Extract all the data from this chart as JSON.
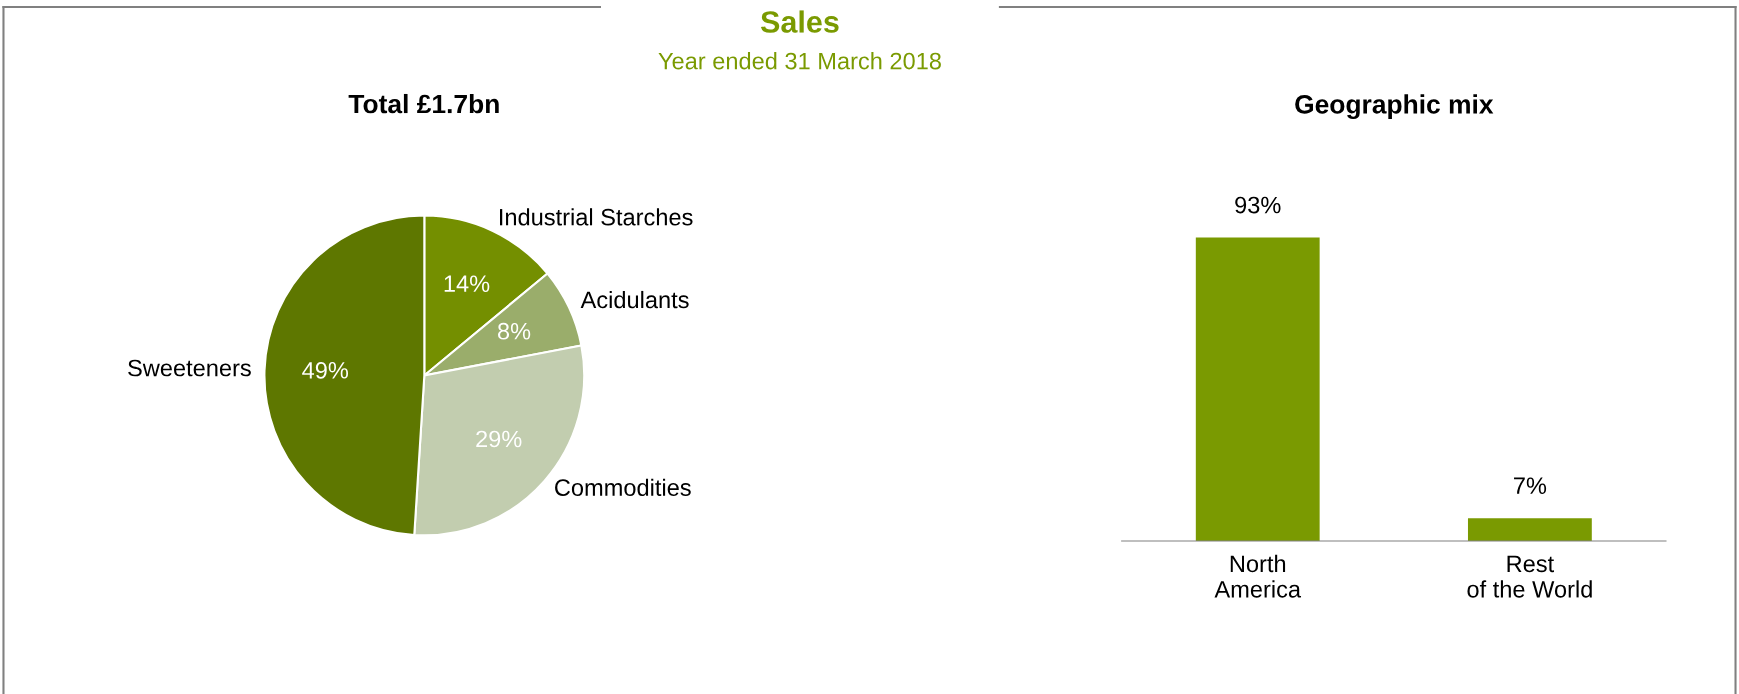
{
  "chart_data": [
    {
      "type": "pie",
      "title": "Total £1.7bn",
      "annotations": [
        "Sales",
        "Year ended 31 March 2018"
      ],
      "categories": [
        "Industrial Starches",
        "Acidulants",
        "Commodities",
        "Sweeteners"
      ],
      "values": [
        14,
        8,
        29,
        49
      ],
      "value_labels": [
        "14%",
        "8%",
        "29%",
        "49%"
      ],
      "colors": [
        "#748f00",
        "#9aad6b",
        "#c2cdaf",
        "#5e7700"
      ]
    },
    {
      "type": "bar",
      "title": "Geographic mix",
      "categories": [
        "North\nAmerica",
        "Rest\nof the World"
      ],
      "values": [
        93,
        7
      ],
      "value_labels": [
        "93%",
        "7%"
      ],
      "color": "#7a9a01"
    }
  ]
}
